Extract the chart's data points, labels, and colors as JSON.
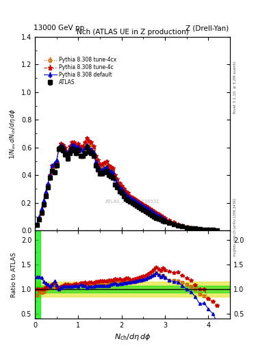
{
  "title_top_left": "13000 GeV pp",
  "title_top_right": "Z (Drell-Yan)",
  "title_main": "Nch (ATLAS UE in Z production)",
  "ylabel_main": "1/N_{ev} dN_{ch}/d\\eta d\\phi",
  "ylabel_ratio": "Ratio to ATLAS",
  "right_label_top": "Rivet 3.1.10, ≥ 3.2M events",
  "right_label_bot": "mcplots.cern.ch [arXiv:1306.3436]",
  "watermark": "ATLAS_2019_I1736531",
  "legend": [
    "ATLAS",
    "Pythia 8.308 default",
    "Pythia 8.308 tune-4c",
    "Pythia 8.308 tune-4cx"
  ],
  "atlas_x": [
    0.05,
    0.1,
    0.15,
    0.2,
    0.25,
    0.3,
    0.35,
    0.4,
    0.45,
    0.5,
    0.55,
    0.6,
    0.65,
    0.7,
    0.75,
    0.8,
    0.85,
    0.9,
    0.95,
    1.0,
    1.05,
    1.1,
    1.15,
    1.2,
    1.25,
    1.3,
    1.35,
    1.4,
    1.45,
    1.5,
    1.55,
    1.6,
    1.65,
    1.7,
    1.75,
    1.8,
    1.85,
    1.9,
    1.95,
    2.0,
    2.05,
    2.1,
    2.15,
    2.2,
    2.25,
    2.3,
    2.35,
    2.4,
    2.45,
    2.5,
    2.55,
    2.6,
    2.65,
    2.7,
    2.75,
    2.8,
    2.85,
    2.9,
    2.95,
    3.0,
    3.1,
    3.2,
    3.3,
    3.4,
    3.5,
    3.6,
    3.7,
    3.8,
    3.9,
    4.0,
    4.1,
    4.2
  ],
  "atlas_y": [
    0.04,
    0.08,
    0.13,
    0.19,
    0.25,
    0.31,
    0.38,
    0.43,
    0.42,
    0.47,
    0.59,
    0.6,
    0.58,
    0.55,
    0.52,
    0.56,
    0.59,
    0.58,
    0.56,
    0.58,
    0.54,
    0.54,
    0.56,
    0.6,
    0.57,
    0.56,
    0.54,
    0.47,
    0.44,
    0.41,
    0.41,
    0.42,
    0.43,
    0.4,
    0.39,
    0.38,
    0.33,
    0.31,
    0.28,
    0.27,
    0.25,
    0.23,
    0.22,
    0.21,
    0.2,
    0.19,
    0.18,
    0.17,
    0.16,
    0.15,
    0.14,
    0.13,
    0.12,
    0.11,
    0.1,
    0.09,
    0.085,
    0.08,
    0.07,
    0.065,
    0.055,
    0.045,
    0.035,
    0.028,
    0.022,
    0.017,
    0.013,
    0.01,
    0.007,
    0.005,
    0.004,
    0.003
  ],
  "atlas_yerr": [
    0.004,
    0.005,
    0.007,
    0.009,
    0.01,
    0.012,
    0.014,
    0.015,
    0.015,
    0.016,
    0.018,
    0.018,
    0.017,
    0.016,
    0.015,
    0.016,
    0.017,
    0.016,
    0.015,
    0.016,
    0.015,
    0.015,
    0.016,
    0.017,
    0.016,
    0.015,
    0.014,
    0.013,
    0.012,
    0.011,
    0.011,
    0.011,
    0.012,
    0.011,
    0.011,
    0.011,
    0.01,
    0.009,
    0.008,
    0.008,
    0.007,
    0.007,
    0.007,
    0.006,
    0.006,
    0.006,
    0.006,
    0.005,
    0.005,
    0.005,
    0.005,
    0.004,
    0.004,
    0.004,
    0.003,
    0.003,
    0.003,
    0.003,
    0.003,
    0.002,
    0.002,
    0.002,
    0.002,
    0.002,
    0.001,
    0.001,
    0.001,
    0.001,
    0.001,
    0.001,
    0.001,
    0.001
  ],
  "py_default_x": [
    0.05,
    0.1,
    0.15,
    0.2,
    0.25,
    0.3,
    0.35,
    0.4,
    0.45,
    0.5,
    0.55,
    0.6,
    0.65,
    0.7,
    0.75,
    0.8,
    0.85,
    0.9,
    0.95,
    1.0,
    1.05,
    1.1,
    1.15,
    1.2,
    1.25,
    1.3,
    1.35,
    1.4,
    1.45,
    1.5,
    1.55,
    1.6,
    1.65,
    1.7,
    1.75,
    1.8,
    1.85,
    1.9,
    1.95,
    2.0,
    2.05,
    2.1,
    2.15,
    2.2,
    2.25,
    2.3,
    2.35,
    2.4,
    2.45,
    2.5,
    2.55,
    2.6,
    2.65,
    2.7,
    2.75,
    2.8,
    2.85,
    2.9,
    2.95,
    3.0,
    3.1,
    3.2,
    3.3,
    3.4,
    3.5,
    3.6,
    3.7,
    3.8,
    3.9,
    4.0,
    4.1,
    4.2
  ],
  "py_default_y": [
    0.05,
    0.1,
    0.16,
    0.22,
    0.28,
    0.34,
    0.4,
    0.47,
    0.49,
    0.51,
    0.59,
    0.62,
    0.61,
    0.58,
    0.55,
    0.59,
    0.62,
    0.62,
    0.6,
    0.61,
    0.59,
    0.58,
    0.6,
    0.62,
    0.6,
    0.59,
    0.57,
    0.5,
    0.47,
    0.44,
    0.44,
    0.45,
    0.46,
    0.43,
    0.43,
    0.42,
    0.37,
    0.34,
    0.31,
    0.3,
    0.28,
    0.26,
    0.25,
    0.24,
    0.23,
    0.22,
    0.21,
    0.2,
    0.19,
    0.18,
    0.17,
    0.16,
    0.15,
    0.14,
    0.13,
    0.12,
    0.11,
    0.1,
    0.09,
    0.08,
    0.065,
    0.052,
    0.04,
    0.03,
    0.022,
    0.016,
    0.011,
    0.007,
    0.005,
    0.003,
    0.002,
    0.001
  ],
  "py_4c_x": [
    0.05,
    0.1,
    0.15,
    0.2,
    0.25,
    0.3,
    0.35,
    0.4,
    0.45,
    0.5,
    0.55,
    0.6,
    0.65,
    0.7,
    0.75,
    0.8,
    0.85,
    0.9,
    0.95,
    1.0,
    1.05,
    1.1,
    1.15,
    1.2,
    1.25,
    1.3,
    1.35,
    1.4,
    1.45,
    1.5,
    1.55,
    1.6,
    1.65,
    1.7,
    1.75,
    1.8,
    1.85,
    1.9,
    1.95,
    2.0,
    2.05,
    2.1,
    2.15,
    2.2,
    2.25,
    2.3,
    2.35,
    2.4,
    2.45,
    2.5,
    2.55,
    2.6,
    2.65,
    2.7,
    2.75,
    2.8,
    2.85,
    2.9,
    2.95,
    3.0,
    3.1,
    3.2,
    3.3,
    3.4,
    3.5,
    3.6,
    3.7,
    3.8,
    3.9,
    4.0,
    4.1,
    4.2
  ],
  "py_4c_y": [
    0.04,
    0.08,
    0.13,
    0.19,
    0.26,
    0.33,
    0.4,
    0.47,
    0.47,
    0.49,
    0.6,
    0.63,
    0.62,
    0.6,
    0.57,
    0.61,
    0.64,
    0.64,
    0.62,
    0.63,
    0.61,
    0.61,
    0.64,
    0.67,
    0.65,
    0.64,
    0.61,
    0.54,
    0.51,
    0.48,
    0.48,
    0.49,
    0.5,
    0.47,
    0.46,
    0.45,
    0.4,
    0.37,
    0.34,
    0.32,
    0.3,
    0.28,
    0.27,
    0.25,
    0.24,
    0.23,
    0.22,
    0.21,
    0.2,
    0.19,
    0.18,
    0.17,
    0.16,
    0.15,
    0.14,
    0.13,
    0.12,
    0.11,
    0.1,
    0.09,
    0.075,
    0.06,
    0.047,
    0.036,
    0.027,
    0.02,
    0.014,
    0.01,
    0.007,
    0.004,
    0.003,
    0.002
  ],
  "py_4cx_x": [
    0.05,
    0.1,
    0.15,
    0.2,
    0.25,
    0.3,
    0.35,
    0.4,
    0.45,
    0.5,
    0.55,
    0.6,
    0.65,
    0.7,
    0.75,
    0.8,
    0.85,
    0.9,
    0.95,
    1.0,
    1.05,
    1.1,
    1.15,
    1.2,
    1.25,
    1.3,
    1.35,
    1.4,
    1.45,
    1.5,
    1.55,
    1.6,
    1.65,
    1.7,
    1.75,
    1.8,
    1.85,
    1.9,
    1.95,
    2.0,
    2.05,
    2.1,
    2.15,
    2.2,
    2.25,
    2.3,
    2.35,
    2.4,
    2.45,
    2.5,
    2.55,
    2.6,
    2.65,
    2.7,
    2.75,
    2.8,
    2.85,
    2.9,
    2.95,
    3.0,
    3.1,
    3.2,
    3.3,
    3.4,
    3.5,
    3.6,
    3.7,
    3.8,
    3.9,
    4.0,
    4.1,
    4.2
  ],
  "py_4cx_y": [
    0.035,
    0.075,
    0.12,
    0.18,
    0.25,
    0.32,
    0.39,
    0.45,
    0.46,
    0.48,
    0.59,
    0.62,
    0.61,
    0.58,
    0.55,
    0.59,
    0.62,
    0.62,
    0.6,
    0.62,
    0.6,
    0.59,
    0.62,
    0.65,
    0.63,
    0.62,
    0.59,
    0.52,
    0.49,
    0.46,
    0.46,
    0.47,
    0.48,
    0.45,
    0.44,
    0.43,
    0.38,
    0.35,
    0.32,
    0.31,
    0.29,
    0.27,
    0.26,
    0.24,
    0.23,
    0.22,
    0.21,
    0.2,
    0.19,
    0.18,
    0.17,
    0.16,
    0.15,
    0.14,
    0.13,
    0.12,
    0.11,
    0.1,
    0.09,
    0.08,
    0.065,
    0.053,
    0.041,
    0.032,
    0.024,
    0.018,
    0.013,
    0.009,
    0.006,
    0.004,
    0.003,
    0.002
  ],
  "xlim": [
    0,
    4.5
  ],
  "ylim_main": [
    0,
    1.4
  ],
  "ylim_ratio": [
    0.4,
    2.2
  ],
  "color_atlas": "#000000",
  "color_default": "#0000cc",
  "color_4c": "#cc0000",
  "color_4cx": "#cc6600",
  "band_green_inner": "#00dd00",
  "band_yellow_outer": "#dddd00",
  "yticks_main": [
    0,
    0.2,
    0.4,
    0.6,
    0.8,
    1.0,
    1.2,
    1.4
  ],
  "yticks_ratio": [
    0.5,
    1.0,
    1.5,
    2.0
  ],
  "xticks": [
    0,
    1,
    2,
    3,
    4
  ]
}
